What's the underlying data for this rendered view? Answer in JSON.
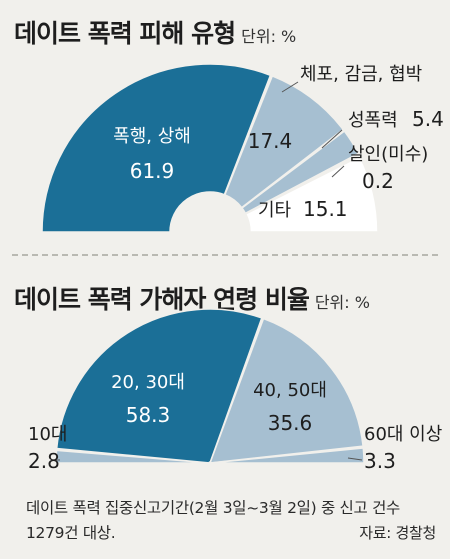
{
  "chart_data": [
    {
      "type": "pie",
      "variant": "semi-donut",
      "title": "데이트 폭력 피해 유형",
      "unit": "단위: %",
      "slices": [
        {
          "label": "폭행, 상해",
          "value": 61.9,
          "value_text": "61.9",
          "color": "#1b6f97"
        },
        {
          "label": "체포, 감금, 협박",
          "value": 17.4,
          "value_text": "17.4",
          "color": "#a6bfd1"
        },
        {
          "label": "성폭력",
          "value": 5.4,
          "value_text": "5.4",
          "color": "#a6bfd1"
        },
        {
          "label": "살인(미수)",
          "value": 0.2,
          "value_text": "0.2",
          "color": "#a6bfd1"
        },
        {
          "label": "기타",
          "value": 15.1,
          "value_text": "15.1",
          "color": "#ffffff"
        }
      ]
    },
    {
      "type": "pie",
      "variant": "semi-donut",
      "title": "데이트 폭력 가해자 연령 비율",
      "unit": "단위: %",
      "slices": [
        {
          "label": "10대",
          "value": 2.8,
          "value_text": "2.8",
          "color": "#a6bfd1"
        },
        {
          "label": "20, 30대",
          "value": 58.3,
          "value_text": "58.3",
          "color": "#1b6f97"
        },
        {
          "label": "40, 50대",
          "value": 35.6,
          "value_text": "35.6",
          "color": "#a6bfd1"
        },
        {
          "label": "60대 이상",
          "value": 3.3,
          "value_text": "3.3",
          "color": "#a6bfd1"
        }
      ]
    }
  ],
  "note": "데이트 폭력 집중신고기간(2월 3일~3월 2일) 중 신고 건수 1279건 대상.",
  "source": "자료: 경찰청"
}
